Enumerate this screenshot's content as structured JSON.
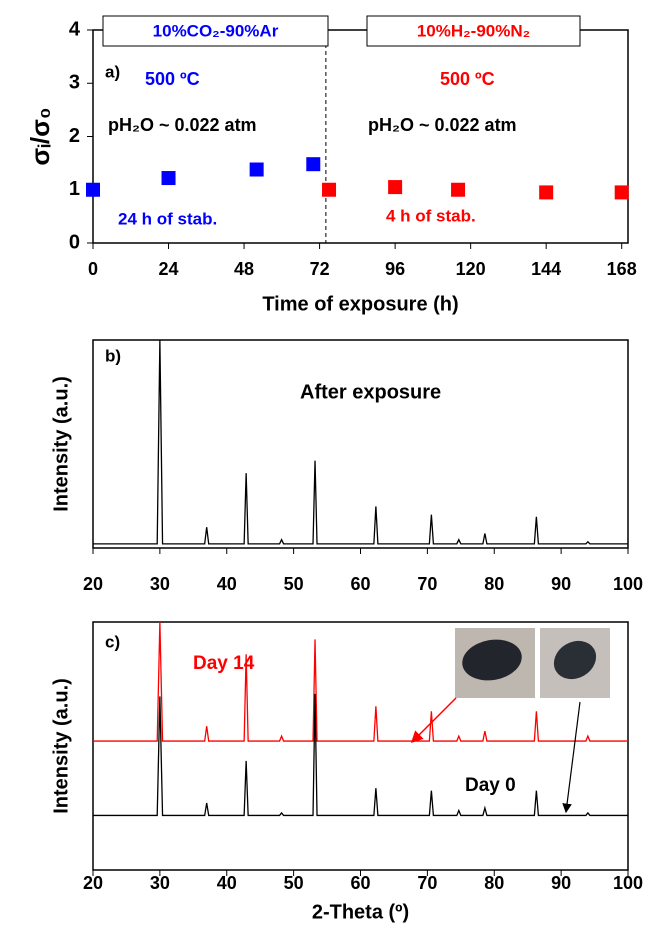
{
  "chart_data": [
    {
      "type": "scatter",
      "xlabel": "Time of exposure (h)",
      "ylabel": "σᵢ/σ₀",
      "xlim": [
        0,
        170
      ],
      "xticks": [
        0,
        24,
        48,
        72,
        96,
        120,
        144,
        168
      ],
      "ylim": [
        0,
        4
      ],
      "yticks": [
        0,
        1,
        2,
        3,
        4
      ],
      "series": [
        {
          "name": "10%CO₂-90%Ar",
          "color": "#0000ff",
          "x": [
            0,
            24,
            52,
            70
          ],
          "values": [
            1.0,
            1.22,
            1.38,
            1.48
          ]
        },
        {
          "name": "10%H₂-90%N₂",
          "color": "#ff0000",
          "x": [
            75,
            96,
            116,
            144,
            168
          ],
          "values": [
            1.0,
            1.05,
            1.0,
            0.95,
            0.95
          ]
        }
      ],
      "divider_x": 74,
      "annotations": [
        "a)",
        "500 ºC",
        "500 ºC",
        "pH₂O ~ 0.022 atm",
        "pH₂O ~ 0.022 atm",
        "24 h of stab.",
        "4 h of stab."
      ]
    },
    {
      "type": "line",
      "ylabel": "Intensity (a.u.)",
      "xlim": [
        20,
        100
      ],
      "xticks": [
        20,
        30,
        40,
        50,
        60,
        70,
        80,
        90,
        100
      ],
      "ylim": [
        0,
        100
      ],
      "x": [
        20,
        29.6,
        30,
        30.4,
        36.7,
        37,
        37.3,
        42.6,
        42.9,
        43.2,
        47.9,
        48.2,
        48.5,
        52.9,
        53.2,
        53.5,
        62,
        62.3,
        62.6,
        70.3,
        70.6,
        70.9,
        74.4,
        74.7,
        75,
        78.3,
        78.6,
        78.9,
        86,
        86.3,
        86.6,
        93.7,
        94,
        94.3,
        100
      ],
      "series": [
        {
          "color": "#000000",
          "values": [
            2,
            2,
            100,
            2,
            2,
            10,
            2,
            2,
            36,
            2,
            2,
            4,
            2,
            2,
            42,
            2,
            2,
            20,
            2,
            2,
            16,
            2,
            2,
            4,
            2,
            2,
            7,
            2,
            2,
            15,
            2,
            2,
            3,
            2,
            2
          ]
        }
      ],
      "annotations": [
        "b)",
        "After exposure"
      ]
    },
    {
      "type": "line",
      "xlabel": "2-Theta (º)",
      "ylabel": "Intensity (a.u.)",
      "xlim": [
        20,
        100
      ],
      "xticks": [
        20,
        30,
        40,
        50,
        60,
        70,
        80,
        90,
        100
      ],
      "ylim": [
        0,
        100
      ],
      "x": [
        20,
        29.6,
        30,
        30.4,
        36.7,
        37,
        37.3,
        42.6,
        42.9,
        43.2,
        47.9,
        48.2,
        48.5,
        52.9,
        53.2,
        53.5,
        62,
        62.3,
        62.6,
        70.3,
        70.6,
        70.9,
        74.4,
        74.7,
        75,
        78.3,
        78.6,
        78.9,
        86,
        86.3,
        86.6,
        93.7,
        94,
        94.3,
        100
      ],
      "series": [
        {
          "name": "Day 14",
          "color": "#ff0000",
          "values": [
            52,
            52,
            100,
            52,
            52,
            58,
            52,
            52,
            87,
            52,
            52,
            54,
            52,
            52,
            93,
            52,
            52,
            66,
            52,
            52,
            64,
            52,
            52,
            54,
            52,
            52,
            56,
            52,
            52,
            64,
            52,
            52,
            54,
            52,
            52
          ]
        },
        {
          "name": "Day 0",
          "color": "#000000",
          "values": [
            22,
            22,
            70,
            22,
            22,
            27,
            22,
            22,
            44,
            22,
            22,
            23,
            22,
            22,
            71,
            22,
            22,
            33,
            22,
            22,
            32,
            22,
            22,
            24,
            22,
            22,
            25,
            22,
            22,
            32,
            22,
            22,
            23,
            22,
            22
          ]
        }
      ],
      "annotations": [
        "c)"
      ]
    }
  ]
}
